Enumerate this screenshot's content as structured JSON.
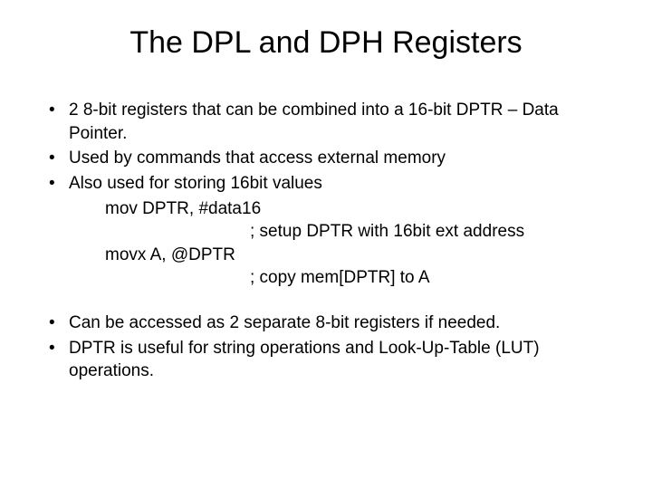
{
  "title": "The DPL and DPH Registers",
  "bullets_top": [
    "2 8-bit registers that can be combined into a 16-bit DPTR – Data Pointer.",
    "Used by commands that access external memory",
    "Also used for storing 16bit values"
  ],
  "code": {
    "line1": "mov DPTR, #data16",
    "line2": "; setup DPTR with 16bit ext address",
    "line3": "movx A, @DPTR",
    "line4": "; copy mem[DPTR] to A"
  },
  "bullets_bottom": [
    "Can be accessed as 2 separate 8-bit registers if needed.",
    "DPTR is useful for string operations and Look-Up-Table (LUT) operations."
  ],
  "colors": {
    "background": "#ffffff",
    "text": "#000000"
  },
  "typography": {
    "title_fontsize": 34,
    "body_fontsize": 19,
    "font_family": "Arial"
  }
}
